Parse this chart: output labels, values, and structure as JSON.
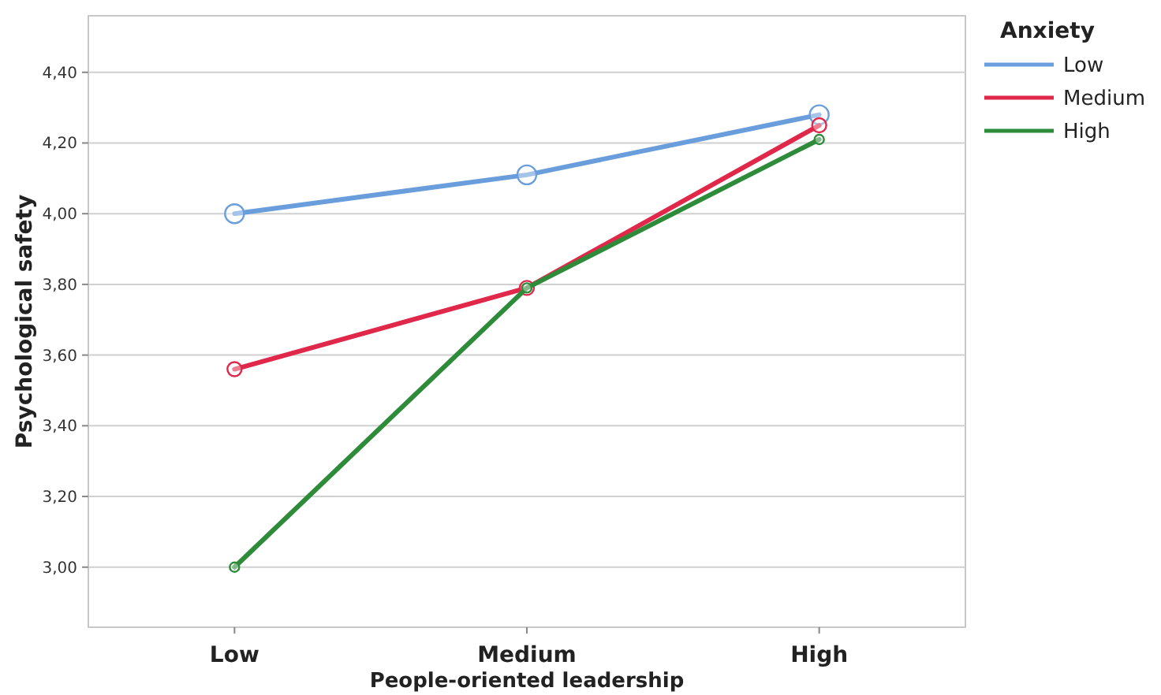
{
  "chart_data": {
    "type": "line",
    "xlabel": "People-oriented leadership",
    "ylabel": "Psychological safety",
    "legend_title": "Anxiety",
    "categories": [
      "Low",
      "Medium",
      "High"
    ],
    "series": [
      {
        "name": "Low",
        "color": "#6a9ddb",
        "values": [
          4.0,
          4.11,
          4.28
        ]
      },
      {
        "name": "Medium",
        "color": "#e0284a",
        "values": [
          3.56,
          3.79,
          4.25
        ]
      },
      {
        "name": "High",
        "color": "#2e8b3a",
        "values": [
          3.0,
          3.79,
          4.21
        ]
      }
    ],
    "ylim": [
      2.83,
      4.56
    ],
    "yticks": [
      {
        "value": 3.0,
        "label": "3,00"
      },
      {
        "value": 3.2,
        "label": "3,20"
      },
      {
        "value": 3.4,
        "label": "3,40"
      },
      {
        "value": 3.6,
        "label": "3,60"
      },
      {
        "value": 3.8,
        "label": "3,80"
      },
      {
        "value": 4.0,
        "label": "4,00"
      },
      {
        "value": 4.2,
        "label": "4,20"
      },
      {
        "value": 4.4,
        "label": "4,40"
      }
    ],
    "grid": "y",
    "legend": "top right",
    "marker": "circle",
    "line_style": "solid"
  }
}
